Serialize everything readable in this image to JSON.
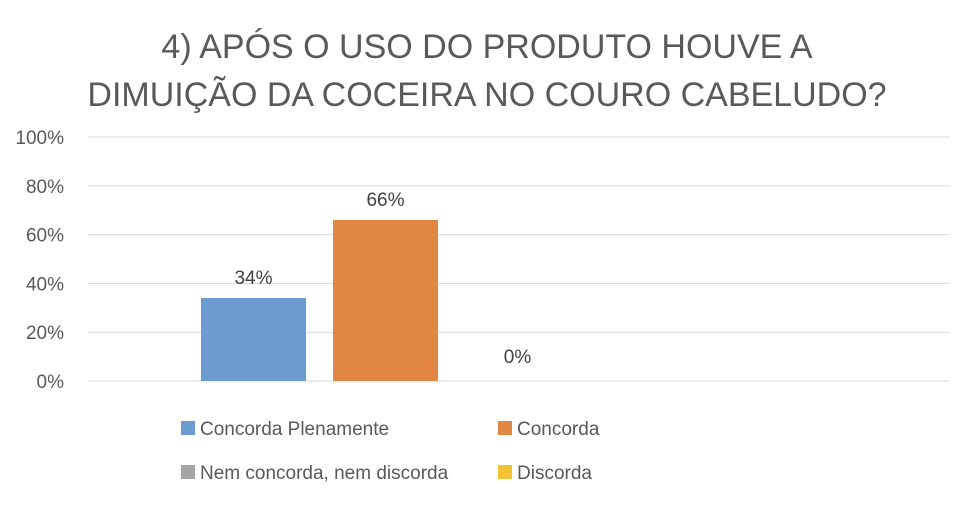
{
  "chart_data": {
    "type": "bar",
    "title": "4) APÓS O USO DO PRODUTO HOUVE A DIMUIÇÃO DA COCEIRA NO COURO CABELUDO?",
    "title_lines": [
      "4) APÓS O USO DO PRODUTO HOUVE A",
      "DIMUIÇÃO DA COCEIRA NO COURO CABELUDO?"
    ],
    "ylim": [
      0,
      100
    ],
    "y_ticks": [
      "0%",
      "20%",
      "40%",
      "60%",
      "80%",
      "100%"
    ],
    "y_tick_values": [
      0,
      20,
      40,
      60,
      80,
      100
    ],
    "grid": true,
    "legend_position": "bottom",
    "series": [
      {
        "name": "Concorda Plenamente",
        "value": 34,
        "label": "34%",
        "color": "#6C9BD2"
      },
      {
        "name": "Concorda",
        "value": 66,
        "label": "66%",
        "color": "#E28743"
      },
      {
        "name": "Nem concorda, nem discorda",
        "value": 0,
        "label": "0%",
        "color": "#A5A5A5"
      },
      {
        "name": "Discorda",
        "value": null,
        "label": "",
        "color": "#F2C233"
      }
    ]
  }
}
